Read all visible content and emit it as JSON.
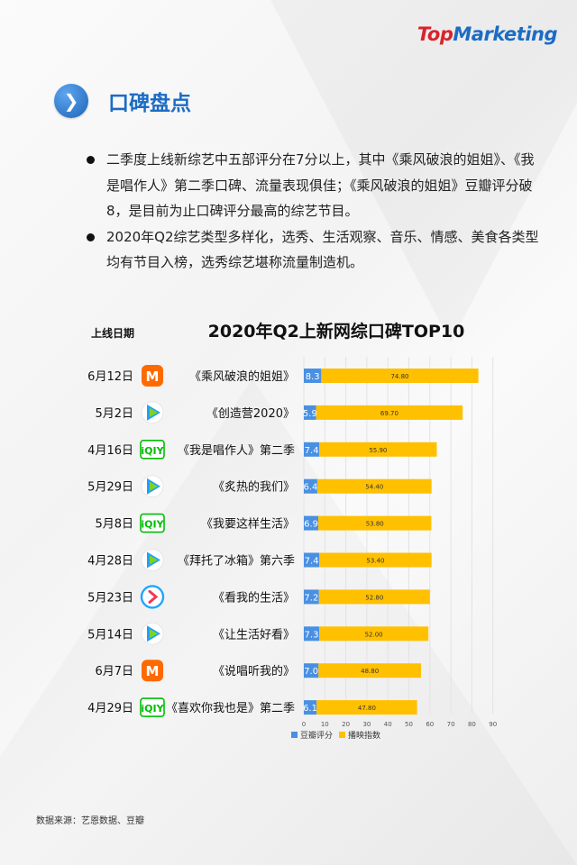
{
  "logo": {
    "part1": "Top",
    "part2": "Marketing"
  },
  "section": {
    "title": "口碑盘点",
    "icon": "chevron-right-icon"
  },
  "bullets": [
    "二季度上线新综艺中五部评分在7分以上，其中《乘风破浪的姐姐》、《我是唱作人》第二季口碑、流量表现俱佳；《乘风破浪的姐姐》豆瓣评分破8，是目前为止口碑评分最高的综艺节目。",
    "2020年Q2综艺类型多样化，选秀、生活观察、音乐、情感、美食各类型均有节目入榜，选秀综艺堪称流量制造机。"
  ],
  "source": "数据来源：艺恩数据、豆瓣",
  "colors": {
    "douban": "#4a90e2",
    "index": "#ffc000",
    "blue": "#1c6cc4",
    "red": "#d9232d"
  },
  "chart_data": {
    "type": "bar",
    "orientation": "horizontal",
    "stacked": true,
    "title": "2020年Q2上新网综口碑TOP10",
    "date_header": "上线日期",
    "categories": [
      "《乘风破浪的姐姐》",
      "《创造营2020》",
      "《我是唱作人》第二季",
      "《炙热的我们》",
      "《我要这样生活》",
      "《拜托了冰箱》第六季",
      "《看我的生活》",
      "《让生活好看》",
      "《说唱听我的》",
      "《喜欢你我也是》第二季"
    ],
    "dates": [
      "6月12日",
      "5月2日",
      "4月16日",
      "5月29日",
      "5月8日",
      "4月28日",
      "5月23日",
      "5月14日",
      "6月7日",
      "4月29日"
    ],
    "platforms": [
      "mango-tv-icon",
      "tencent-video-icon",
      "iqiyi-icon",
      "tencent-video-icon",
      "iqiyi-icon",
      "tencent-video-icon",
      "youku-icon",
      "tencent-video-icon",
      "mango-tv-icon",
      "iqiyi-icon"
    ],
    "series": [
      {
        "name": "豆瓣评分",
        "values": [
          8.3,
          5.9,
          7.4,
          6.4,
          6.9,
          7.4,
          7.2,
          7.3,
          7.0,
          6.1
        ],
        "labels": [
          "8.3",
          "5.9",
          "7.4",
          "6.4",
          "6.9",
          "7.4",
          "7.2",
          "7.3",
          "7.0",
          "6.1"
        ]
      },
      {
        "name": "播映指数",
        "values": [
          74.8,
          69.7,
          55.9,
          54.4,
          53.8,
          53.4,
          52.8,
          52.0,
          48.8,
          47.8
        ],
        "labels": [
          "74.80",
          "69.70",
          "55.90",
          "54.40",
          "53.80",
          "53.40",
          "52.80",
          "52.00",
          "48.80",
          "47.80"
        ]
      }
    ],
    "xlim": [
      0,
      90
    ],
    "xticks": [
      "0",
      "10",
      "20",
      "30",
      "40",
      "50",
      "60",
      "70",
      "80",
      "90"
    ],
    "grid": true,
    "legend": "bottom"
  }
}
